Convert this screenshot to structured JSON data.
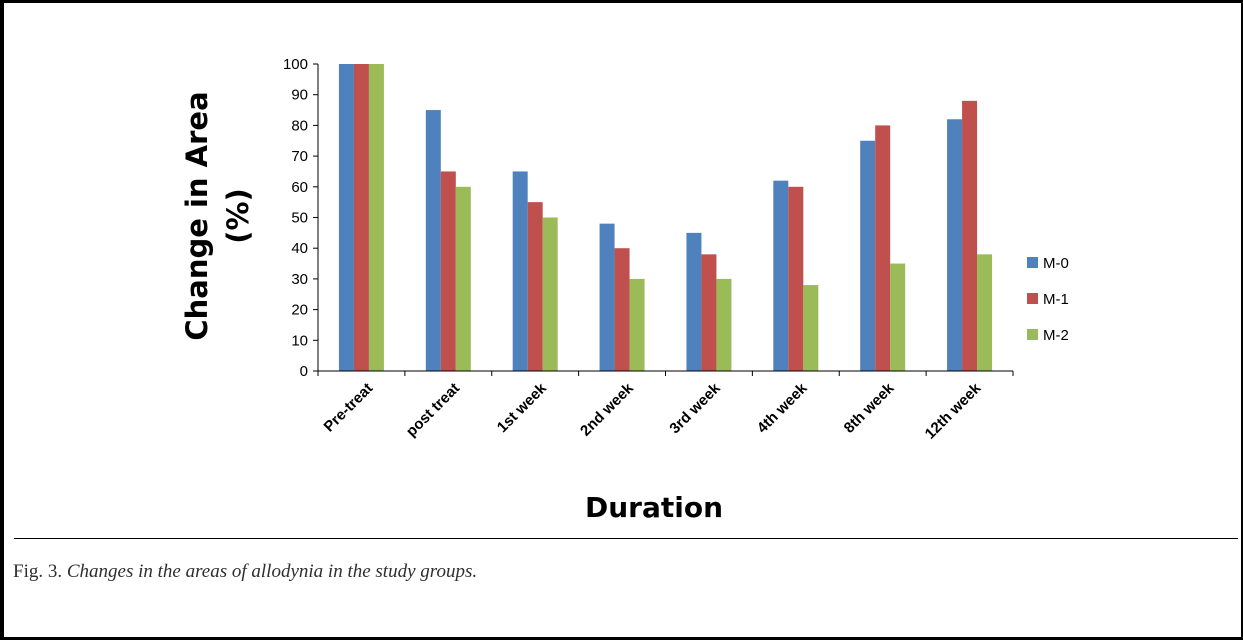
{
  "figure": {
    "caption_lead": "Fig. 3.",
    "caption_text": "Changes in the areas of allodynia in the study groups."
  },
  "chart_data": {
    "type": "bar",
    "title": "",
    "xlabel": "Duration",
    "ylabel": [
      "Change in Area",
      "(%)"
    ],
    "ylim": [
      0,
      100
    ],
    "yticks": [
      0,
      10,
      20,
      30,
      40,
      50,
      60,
      70,
      80,
      90,
      100
    ],
    "categories": [
      "Pre-treat",
      "post treat",
      "1st week",
      "2nd week",
      "3rd week",
      "4th week",
      "8th week",
      "12th week"
    ],
    "series": [
      {
        "name": "M-0",
        "color": "#4f81bd",
        "values": [
          100,
          85,
          65,
          48,
          45,
          62,
          75,
          82
        ]
      },
      {
        "name": "M-1",
        "color": "#c0504d",
        "values": [
          100,
          65,
          55,
          40,
          38,
          60,
          80,
          88
        ]
      },
      {
        "name": "M-2",
        "color": "#9bbb59",
        "values": [
          100,
          60,
          50,
          30,
          30,
          28,
          35,
          38
        ]
      }
    ],
    "grid": false,
    "legend_position": "right"
  }
}
